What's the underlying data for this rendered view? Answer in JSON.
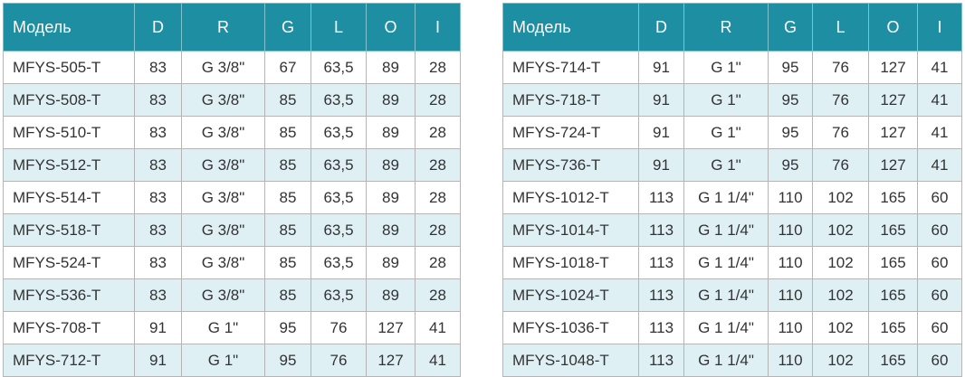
{
  "tables": [
    {
      "header": [
        "Модель",
        "D",
        "R",
        "G",
        "L",
        "O",
        "I"
      ],
      "rows": [
        [
          "MFYS-505-T",
          "83",
          "G 3/8\"",
          "67",
          "63,5",
          "89",
          "28"
        ],
        [
          "MFYS-508-T",
          "83",
          "G 3/8\"",
          "85",
          "63,5",
          "89",
          "28"
        ],
        [
          "MFYS-510-T",
          "83",
          "G 3/8\"",
          "85",
          "63,5",
          "89",
          "28"
        ],
        [
          "MFYS-512-T",
          "83",
          "G 3/8\"",
          "85",
          "63,5",
          "89",
          "28"
        ],
        [
          "MFYS-514-T",
          "83",
          "G 3/8\"",
          "85",
          "63,5",
          "89",
          "28"
        ],
        [
          "MFYS-518-T",
          "83",
          "G 3/8\"",
          "85",
          "63,5",
          "89",
          "28"
        ],
        [
          "MFYS-524-T",
          "83",
          "G 3/8\"",
          "85",
          "63,5",
          "89",
          "28"
        ],
        [
          "MFYS-536-T",
          "83",
          "G 3/8\"",
          "85",
          "63,5",
          "89",
          "28"
        ],
        [
          "MFYS-708-T",
          "91",
          "G 1\"",
          "95",
          "76",
          "127",
          "41"
        ],
        [
          "MFYS-712-T",
          "91",
          "G 1\"",
          "95",
          "76",
          "127",
          "41"
        ]
      ]
    },
    {
      "header": [
        "Модель",
        "D",
        "R",
        "G",
        "L",
        "O",
        "I"
      ],
      "rows": [
        [
          "MFYS-714-T",
          "91",
          "G 1\"",
          "95",
          "76",
          "127",
          "41"
        ],
        [
          "MFYS-718-T",
          "91",
          "G 1\"",
          "95",
          "76",
          "127",
          "41"
        ],
        [
          "MFYS-724-T",
          "91",
          "G 1\"",
          "95",
          "76",
          "127",
          "41"
        ],
        [
          "MFYS-736-T",
          "91",
          "G 1\"",
          "95",
          "76",
          "127",
          "41"
        ],
        [
          "MFYS-1012-T",
          "113",
          "G 1 1/4\"",
          "110",
          "102",
          "165",
          "60"
        ],
        [
          "MFYS-1014-T",
          "113",
          "G 1 1/4\"",
          "110",
          "102",
          "165",
          "60"
        ],
        [
          "MFYS-1018-T",
          "113",
          "G 1 1/4\"",
          "110",
          "102",
          "165",
          "60"
        ],
        [
          "MFYS-1024-T",
          "113",
          "G 1 1/4\"",
          "110",
          "102",
          "165",
          "60"
        ],
        [
          "MFYS-1036-T",
          "113",
          "G 1 1/4\"",
          "110",
          "102",
          "165",
          "60"
        ],
        [
          "MFYS-1048-T",
          "113",
          "G 1 1/4\"",
          "110",
          "102",
          "165",
          "60"
        ]
      ]
    }
  ]
}
